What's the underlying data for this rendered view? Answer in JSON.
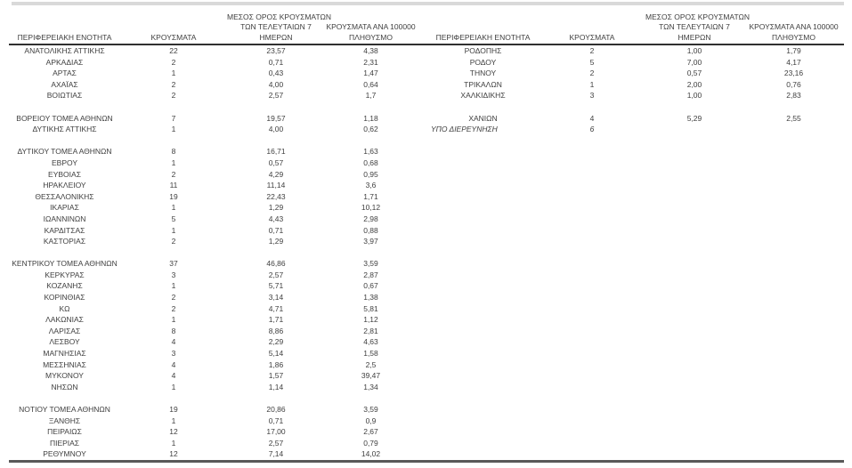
{
  "document": {
    "description": "Cases by regional unit table",
    "language": "el"
  },
  "colors": {
    "text": "#404040",
    "header_rule": "#303030",
    "bottom_rule": "#595959",
    "top_bar": "#d9d9d9",
    "background": "#ffffff"
  },
  "headers": {
    "region": "ΠΕΡΙΦΕΡΕΙΑΚΗ ΕΝΟΤΗΤΑ",
    "cases": "ΚΡΟΥΣΜΑΤΑ",
    "avg7_line1": "ΜΕΣΟΣ ΟΡΟΣ ΚΡΟΥΣΜΑΤΩΝ",
    "avg7_line2": "ΤΩΝ ΤΕΛΕΥΤΑΙΩΝ 7",
    "avg7_line3": "ΗΜΕΡΩΝ",
    "per100k_line1": "ΚΡΟΥΣΜΑΤΑ ΑΝΑ 100000",
    "per100k_line2": "ΠΛΗΘΥΣΜΟ"
  },
  "left_table": {
    "rows": [
      {
        "name": "ΑΝΑΤΟΛΙΚΗΣ ΑΤΤΙΚΗΣ",
        "cases": "22",
        "avg7": "23,57",
        "per100k": "4,38"
      },
      {
        "name": "ΑΡΚΑΔΙΑΣ",
        "cases": "2",
        "avg7": "0,71",
        "per100k": "2,31"
      },
      {
        "name": "ΑΡΤΑΣ",
        "cases": "1",
        "avg7": "0,43",
        "per100k": "1,47"
      },
      {
        "name": "ΑΧΑΪΑΣ",
        "cases": "2",
        "avg7": "4,00",
        "per100k": "0,64"
      },
      {
        "name": "ΒΟΙΩΤΙΑΣ",
        "cases": "2",
        "avg7": "2,57",
        "per100k": "1,7"
      },
      {
        "blank": true
      },
      {
        "name": "ΒΟΡΕΙΟΥ ΤΟΜΕΑ ΑΘΗΝΩΝ",
        "cases": "7",
        "avg7": "19,57",
        "per100k": "1,18"
      },
      {
        "name": "ΔΥΤΙΚΗΣ ΑΤΤΙΚΗΣ",
        "cases": "1",
        "avg7": "4,00",
        "per100k": "0,62"
      },
      {
        "blank": true
      },
      {
        "name": "ΔΥΤΙΚΟΥ ΤΟΜΕΑ ΑΘΗΝΩΝ",
        "cases": "8",
        "avg7": "16,71",
        "per100k": "1,63"
      },
      {
        "name": "ΕΒΡΟΥ",
        "cases": "1",
        "avg7": "0,57",
        "per100k": "0,68"
      },
      {
        "name": "ΕΥΒΟΙΑΣ",
        "cases": "2",
        "avg7": "4,29",
        "per100k": "0,95"
      },
      {
        "name": "ΗΡΑΚΛΕΙΟΥ",
        "cases": "11",
        "avg7": "11,14",
        "per100k": "3,6"
      },
      {
        "name": "ΘΕΣΣΑΛΟΝΙΚΗΣ",
        "cases": "19",
        "avg7": "22,43",
        "per100k": "1,71"
      },
      {
        "name": "ΙΚΑΡΙΑΣ",
        "cases": "1",
        "avg7": "1,29",
        "per100k": "10,12"
      },
      {
        "name": "ΙΩΑΝΝΙΝΩΝ",
        "cases": "5",
        "avg7": "4,43",
        "per100k": "2,98"
      },
      {
        "name": "ΚΑΡΔΙΤΣΑΣ",
        "cases": "1",
        "avg7": "0,71",
        "per100k": "0,88"
      },
      {
        "name": "ΚΑΣΤΟΡΙΑΣ",
        "cases": "2",
        "avg7": "1,29",
        "per100k": "3,97"
      },
      {
        "blank": true
      },
      {
        "name": "ΚΕΝΤΡΙΚΟΥ ΤΟΜΕΑ ΑΘΗΝΩΝ",
        "cases": "37",
        "avg7": "46,86",
        "per100k": "3,59"
      },
      {
        "name": "ΚΕΡΚΥΡΑΣ",
        "cases": "3",
        "avg7": "2,57",
        "per100k": "2,87"
      },
      {
        "name": "ΚΟΖΑΝΗΣ",
        "cases": "1",
        "avg7": "5,71",
        "per100k": "0,67"
      },
      {
        "name": "ΚΟΡΙΝΘΙΑΣ",
        "cases": "2",
        "avg7": "3,14",
        "per100k": "1,38"
      },
      {
        "name": "ΚΩ",
        "cases": "2",
        "avg7": "4,71",
        "per100k": "5,81"
      },
      {
        "name": "ΛΑΚΩΝΙΑΣ",
        "cases": "1",
        "avg7": "1,71",
        "per100k": "1,12"
      },
      {
        "name": "ΛΑΡΙΣΑΣ",
        "cases": "8",
        "avg7": "8,86",
        "per100k": "2,81"
      },
      {
        "name": "ΛΕΣΒΟΥ",
        "cases": "4",
        "avg7": "2,29",
        "per100k": "4,63"
      },
      {
        "name": "ΜΑΓΝΗΣΙΑΣ",
        "cases": "3",
        "avg7": "5,14",
        "per100k": "1,58"
      },
      {
        "name": "ΜΕΣΣΗΝΙΑΣ",
        "cases": "4",
        "avg7": "1,86",
        "per100k": "2,5"
      },
      {
        "name": "ΜΥΚΟΝΟΥ",
        "cases": "4",
        "avg7": "1,57",
        "per100k": "39,47"
      },
      {
        "name": "ΝΗΣΩΝ",
        "cases": "1",
        "avg7": "1,14",
        "per100k": "1,34"
      },
      {
        "blank": true
      },
      {
        "name": "ΝΟΤΙΟΥ ΤΟΜΕΑ ΑΘΗΝΩΝ",
        "cases": "19",
        "avg7": "20,86",
        "per100k": "3,59"
      },
      {
        "name": "ΞΑΝΘΗΣ",
        "cases": "1",
        "avg7": "0,71",
        "per100k": "0,9"
      },
      {
        "name": "ΠΕΙΡΑΙΩΣ",
        "cases": "12",
        "avg7": "17,00",
        "per100k": "2,67"
      },
      {
        "name": "ΠΙΕΡΙΑΣ",
        "cases": "1",
        "avg7": "2,57",
        "per100k": "0,79"
      },
      {
        "name": "ΡΕΘΥΜΝΟΥ",
        "cases": "12",
        "avg7": "7,14",
        "per100k": "14,02"
      }
    ]
  },
  "right_table": {
    "rows": [
      {
        "name": "ΡΟΔΟΠΗΣ",
        "cases": "2",
        "avg7": "1,00",
        "per100k": "1,79"
      },
      {
        "name": "ΡΟΔΟΥ",
        "cases": "5",
        "avg7": "7,00",
        "per100k": "4,17"
      },
      {
        "name": "ΤΗΝΟΥ",
        "cases": "2",
        "avg7": "0,57",
        "per100k": "23,16"
      },
      {
        "name": "ΤΡΙΚΑΛΩΝ",
        "cases": "1",
        "avg7": "2,00",
        "per100k": "0,76"
      },
      {
        "name": "ΧΑΛΚΙΔΙΚΗΣ",
        "cases": "3",
        "avg7": "1,00",
        "per100k": "2,83"
      },
      {
        "blank": true
      },
      {
        "name": "ΧΑΝΙΩΝ",
        "cases": "4",
        "avg7": "5,29",
        "per100k": "2,55"
      },
      {
        "name": "ΥΠΟ ΔΙΕΡΕΥΝΗΣΗ",
        "cases": "6",
        "avg7": "",
        "per100k": "",
        "italic": true
      }
    ]
  }
}
